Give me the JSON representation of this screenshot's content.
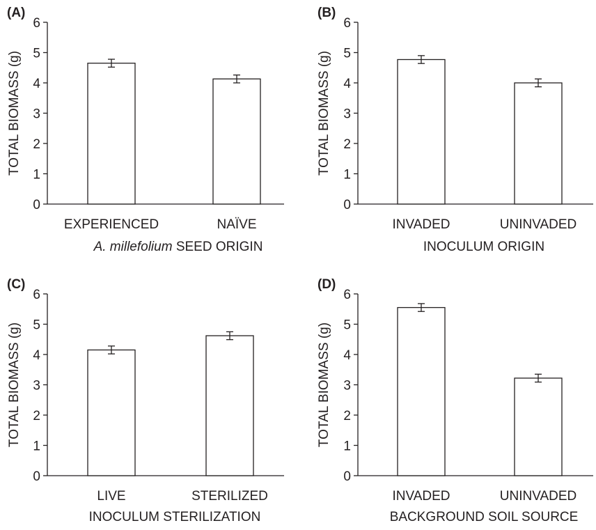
{
  "chart_data": [
    {
      "type": "bar",
      "panel": "(A)",
      "categories": [
        "EXPERIENCED",
        "NAÏVE"
      ],
      "values": [
        4.65,
        4.13
      ],
      "errors": [
        0.13,
        0.13
      ],
      "ylabel": "TOTAL BIOMASS (g)",
      "xlabel_italic": "A. millefolium",
      "xlabel_rest": " SEED ORIGIN",
      "ylim": [
        0,
        6
      ],
      "yticks": [
        "0",
        "1",
        "2",
        "3",
        "4",
        "5",
        "6"
      ]
    },
    {
      "type": "bar",
      "panel": "(B)",
      "categories": [
        "INVADED",
        "UNINVADED"
      ],
      "values": [
        4.77,
        4.0
      ],
      "errors": [
        0.13,
        0.13
      ],
      "ylabel": "TOTAL BIOMASS (g)",
      "xlabel_italic": "",
      "xlabel_rest": "INOCULUM ORIGIN",
      "ylim": [
        0,
        6
      ],
      "yticks": [
        "0",
        "1",
        "2",
        "3",
        "4",
        "5",
        "6"
      ]
    },
    {
      "type": "bar",
      "panel": "(C)",
      "categories": [
        "LIVE",
        "STERILIZED"
      ],
      "values": [
        4.15,
        4.62
      ],
      "errors": [
        0.13,
        0.13
      ],
      "ylabel": "TOTAL BIOMASS (g)",
      "xlabel_italic": "",
      "xlabel_rest": "INOCULUM STERILIZATION",
      "ylim": [
        0,
        6
      ],
      "yticks": [
        "0",
        "1",
        "2",
        "3",
        "4",
        "5",
        "6"
      ]
    },
    {
      "type": "bar",
      "panel": "(D)",
      "categories": [
        "INVADED",
        "UNINVADED"
      ],
      "values": [
        5.55,
        3.22
      ],
      "errors": [
        0.13,
        0.13
      ],
      "ylabel": "TOTAL BIOMASS (g)",
      "xlabel_italic": "",
      "xlabel_rest": "BACKGROUND SOIL SOURCE",
      "ylim": [
        0,
        6
      ],
      "yticks": [
        "0",
        "1",
        "2",
        "3",
        "4",
        "5",
        "6"
      ]
    }
  ]
}
